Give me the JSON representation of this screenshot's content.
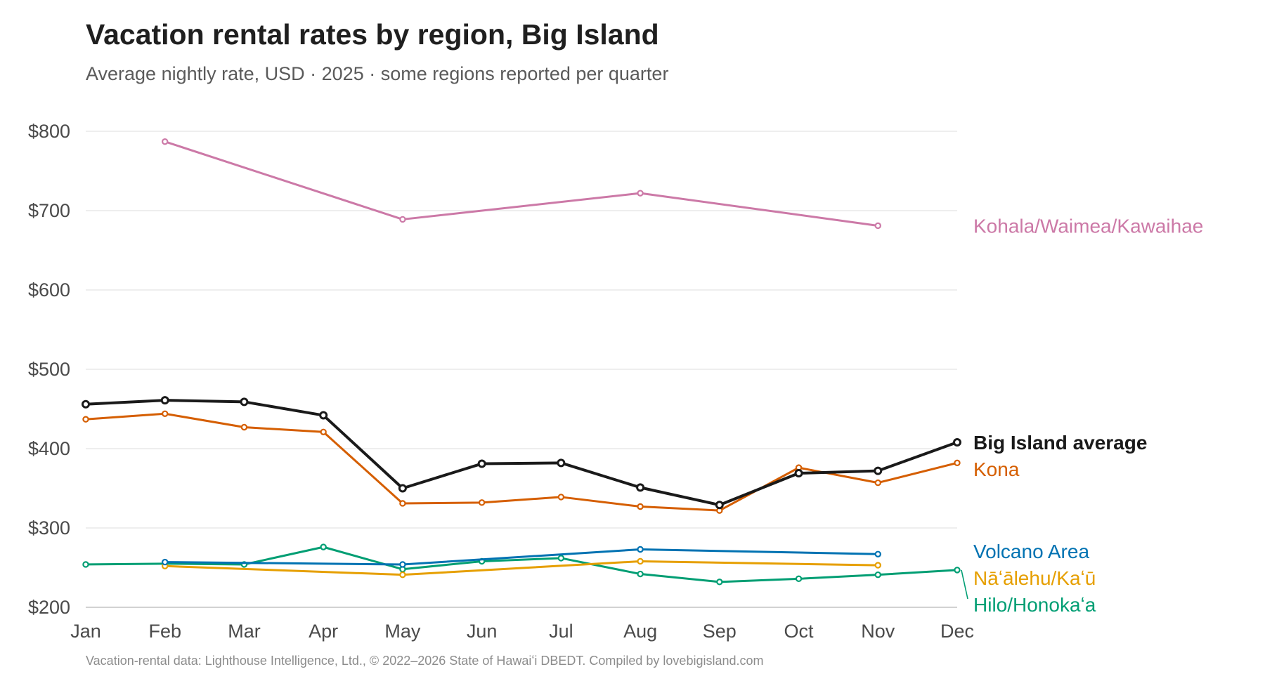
{
  "title": "Vacation rental rates by region, Big Island",
  "subtitle": "Average nightly rate, USD · 2025 · some regions reported per quarter",
  "source": "Vacation-rental data: Lighthouse Intelligence, Ltd., © 2022–2026 State of Hawaiʻi DBEDT. Compiled by lovebigisland.com",
  "chart_data": {
    "type": "line",
    "title": "Vacation rental rates by region, Big Island",
    "subtitle": "Average nightly rate, USD · 2025 · some regions reported per quarter",
    "xlabel": "",
    "ylabel": "",
    "categories": [
      "Jan",
      "Feb",
      "Mar",
      "Apr",
      "May",
      "Jun",
      "Jul",
      "Aug",
      "Sep",
      "Oct",
      "Nov",
      "Dec"
    ],
    "ylim": [
      200,
      800
    ],
    "yticks": [
      200,
      300,
      400,
      500,
      600,
      700,
      800
    ],
    "ytick_labels": [
      "$200",
      "$300",
      "$400",
      "$500",
      "$600",
      "$700",
      "$800"
    ],
    "grid": "horizontal",
    "legend": "direct labels at right end of lines",
    "series": [
      {
        "name": "Kohala/Waimea/Kawaihae",
        "color": "#cc79a7",
        "bold": false,
        "values": [
          null,
          787,
          null,
          null,
          689,
          null,
          null,
          722,
          null,
          null,
          681,
          null
        ]
      },
      {
        "name": "Big Island average",
        "color": "#1a1a1a",
        "bold": true,
        "values": [
          456,
          461,
          459,
          442,
          350,
          381,
          382,
          351,
          329,
          369,
          372,
          408
        ]
      },
      {
        "name": "Kona",
        "color": "#d55e00",
        "bold": false,
        "values": [
          437,
          444,
          427,
          421,
          331,
          332,
          339,
          327,
          322,
          376,
          357,
          382
        ]
      },
      {
        "name": "Volcano Area",
        "color": "#0072b2",
        "bold": false,
        "values": [
          null,
          257,
          null,
          null,
          254,
          null,
          null,
          273,
          null,
          null,
          267,
          null
        ]
      },
      {
        "name": "Nāʻālehu/Kaʻū",
        "color": "#e69f00",
        "bold": false,
        "values": [
          null,
          252,
          null,
          null,
          241,
          null,
          null,
          258,
          null,
          null,
          253,
          null
        ]
      },
      {
        "name": "Hilo/Honokaʻa",
        "color": "#009e73",
        "bold": false,
        "values": [
          254,
          255,
          254,
          276,
          248,
          258,
          262,
          242,
          232,
          236,
          241,
          247
        ]
      }
    ]
  }
}
